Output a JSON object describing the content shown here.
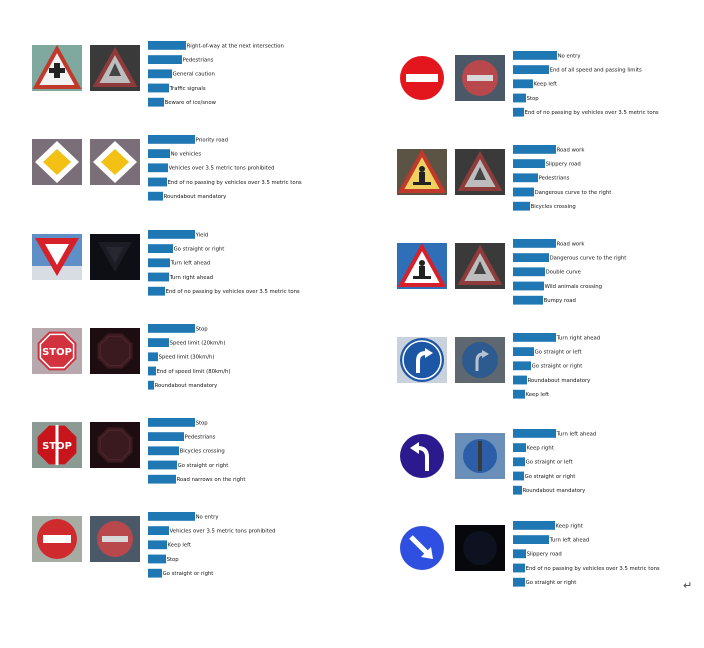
{
  "bar_color": "#1f77b4",
  "return_mark": "↵",
  "chart_data": [
    {
      "type": "bar",
      "orientation": "horizontal",
      "sign": "give-way-triangle",
      "processed": "triangle-dark",
      "categories": [
        "Right-of-way at the next intersection",
        "Pedestrians",
        "General caution",
        "Traffic signals",
        "Beware of ice/snow"
      ],
      "values": [
        0.38,
        0.34,
        0.24,
        0.21,
        0.16
      ]
    },
    {
      "type": "bar",
      "orientation": "horizontal",
      "sign": "no-entry",
      "processed": "no-entry-dim",
      "categories": [
        "No entry",
        "End of all speed and passing limits",
        "Keep left",
        "Stop",
        "End of no passing by vehicles over 3.5 metric tons"
      ],
      "values": [
        0.44,
        0.36,
        0.2,
        0.13,
        0.11
      ]
    },
    {
      "type": "bar",
      "orientation": "horizontal",
      "sign": "priority-road",
      "processed": "priority-road",
      "categories": [
        "Priority road",
        "No vehicles",
        "Vehicles over 3.5 metric tons prohibited",
        "End of no passing by vehicles over 3.5 metric tons",
        "Roundabout mandatory"
      ],
      "values": [
        0.47,
        0.22,
        0.2,
        0.19,
        0.15
      ]
    },
    {
      "type": "bar",
      "orientation": "horizontal",
      "sign": "road-work",
      "processed": "triangle-dark",
      "categories": [
        "Road work",
        "Slippery road",
        "Pedestrians",
        "Dangerous curve to the right",
        "Bicycles crossing"
      ],
      "values": [
        0.43,
        0.32,
        0.25,
        0.21,
        0.17
      ]
    },
    {
      "type": "bar",
      "orientation": "horizontal",
      "sign": "yield",
      "processed": "yield-dark",
      "categories": [
        "Yield",
        "Go straight or right",
        "Turn left ahead",
        "Turn right ahead",
        "End of no passing by vehicles over 3.5 metric tons"
      ],
      "values": [
        0.47,
        0.25,
        0.22,
        0.21,
        0.17
      ]
    },
    {
      "type": "bar",
      "orientation": "horizontal",
      "sign": "road-work-blue-sky",
      "processed": "triangle-dark",
      "categories": [
        "Road work",
        "Dangerous curve to the right",
        "Double curve",
        "Wild animals crossing",
        "Bumpy road"
      ],
      "values": [
        0.43,
        0.36,
        0.32,
        0.31,
        0.3
      ]
    },
    {
      "type": "bar",
      "orientation": "horizontal",
      "sign": "stop",
      "processed": "stop-dark",
      "categories": [
        "Stop",
        "Speed limit (20km/h)",
        "Speed limit (30km/h)",
        "End of speed limit (80km/h)",
        "Roundabout mandatory"
      ],
      "values": [
        0.47,
        0.21,
        0.1,
        0.08,
        0.06
      ]
    },
    {
      "type": "bar",
      "orientation": "horizontal",
      "sign": "turn-right-ahead",
      "processed": "turn-right-dim",
      "categories": [
        "Turn right ahead",
        "Go straight or left",
        "Go straight or right",
        "Roundabout mandatory",
        "Keep left"
      ],
      "values": [
        0.43,
        0.21,
        0.18,
        0.14,
        0.12
      ]
    },
    {
      "type": "bar",
      "orientation": "horizontal",
      "sign": "stop-graffiti",
      "processed": "stop-dark",
      "categories": [
        "Stop",
        "Pedestrians",
        "Bicycles crossing",
        "Go straight or right",
        "Road narrows on the right"
      ],
      "values": [
        0.47,
        0.36,
        0.31,
        0.29,
        0.28
      ]
    },
    {
      "type": "bar",
      "orientation": "horizontal",
      "sign": "turn-left-ahead",
      "processed": "blue-circle",
      "categories": [
        "Turn left ahead",
        "Keep right",
        "Go straight or left",
        "Go straight or right",
        "Roundabout mandatory"
      ],
      "values": [
        0.43,
        0.13,
        0.12,
        0.11,
        0.09
      ]
    },
    {
      "type": "bar",
      "orientation": "horizontal",
      "sign": "no-entry-plain",
      "processed": "no-entry-dim",
      "categories": [
        "No entry",
        "Vehicles over 3.5 metric tons prohibited",
        "Keep left",
        "Stop",
        "Go straight or right"
      ],
      "values": [
        0.47,
        0.21,
        0.19,
        0.18,
        0.14
      ]
    },
    {
      "type": "bar",
      "orientation": "horizontal",
      "sign": "keep-right",
      "processed": "very-dark",
      "categories": [
        "Keep right",
        "Turn left ahead",
        "Slippery road",
        "End of no passing by vehicles over 3.5 metric tons",
        "Go straight or right"
      ],
      "values": [
        0.42,
        0.36,
        0.13,
        0.12,
        0.12
      ]
    }
  ]
}
